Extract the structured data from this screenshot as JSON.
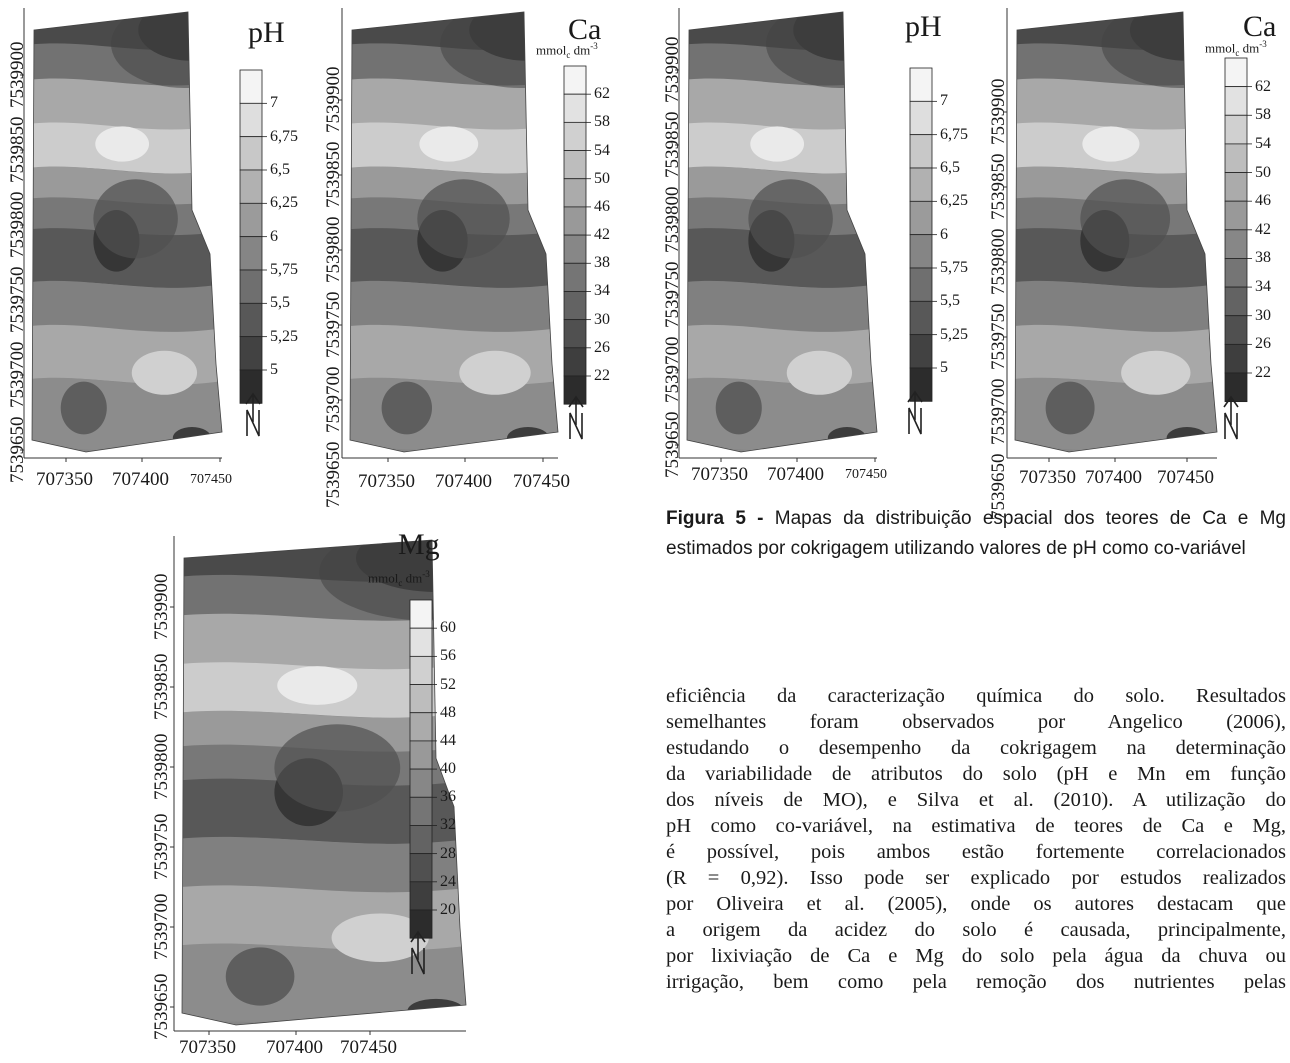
{
  "panels": [
    {
      "id": "p1",
      "variable": "pH",
      "unit": "",
      "y_ticks": [
        "7539650",
        "7539700",
        "7539750",
        "7539800",
        "7539850",
        "7539900"
      ],
      "x_ticks": [
        "707350",
        "707400",
        "707450"
      ],
      "legend": [
        "7",
        "6,75",
        "6,5",
        "6,25",
        "6",
        "5,75",
        "5,5",
        "5,25",
        "5"
      ]
    },
    {
      "id": "p2",
      "variable": "Ca",
      "unit": "mmolc dm-3",
      "y_ticks": [
        "7539650",
        "7539700",
        "7539750",
        "7539800",
        "7539850",
        "7539900"
      ],
      "x_ticks": [
        "707350",
        "707400",
        "707450"
      ],
      "legend": [
        "62",
        "58",
        "54",
        "50",
        "46",
        "42",
        "38",
        "34",
        "30",
        "26",
        "22"
      ]
    },
    {
      "id": "p3",
      "variable": "pH",
      "unit": "",
      "y_ticks": [
        "7539650",
        "7539700",
        "7539750",
        "7539800",
        "7539850",
        "7539900"
      ],
      "x_ticks": [
        "707350",
        "707400",
        "707450"
      ],
      "legend": [
        "7",
        "6,75",
        "6,5",
        "6,25",
        "6",
        "5,75",
        "5,5",
        "5,25",
        "5"
      ]
    },
    {
      "id": "p4",
      "variable": "Ca",
      "unit": "mmolc dm-3",
      "y_ticks": [
        "7539650",
        "7539700",
        "7539750",
        "7539800",
        "7539850",
        "7539900"
      ],
      "x_ticks": [
        "707350",
        "707400",
        "707450"
      ],
      "legend": [
        "62",
        "58",
        "54",
        "50",
        "46",
        "42",
        "38",
        "34",
        "30",
        "26",
        "22"
      ]
    },
    {
      "id": "p5",
      "variable": "Mg",
      "unit": "mmolc dm-3",
      "y_ticks": [
        "7539650",
        "7539700",
        "7539750",
        "7539800",
        "7539850",
        "7539900"
      ],
      "x_ticks": [
        "707350",
        "707400",
        "707450"
      ],
      "legend": [
        "60",
        "56",
        "52",
        "48",
        "44",
        "40",
        "36",
        "32",
        "28",
        "24",
        "20"
      ]
    }
  ],
  "caption": {
    "label": "Figura 5 -",
    "text": " Mapas da distribuição espacial dos teores de Ca e Mg estimados por cokrigagem utilizando valores de pH como co-variável"
  },
  "body_lines": [
    "eficiência da caracterização química do solo. Resultados",
    "semelhantes foram observados por Angelico (2006),",
    "estudando o desempenho da cokrigagem na determinação",
    "da variabilidade de atributos do solo (pH e Mn em função",
    "dos níveis de MO), e Silva et al. (2010). A utilização do",
    "pH como co-variável, na estimativa de teores de Ca e Mg,",
    "é possível, pois ambos estão fortemente correlacionados",
    "(R = 0,92). Isso pode ser explicado por estudos realizados",
    "por Oliveira et al. (2005), onde os autores destacam que",
    "a origem da acidez do solo é causada, principalmente,",
    "por lixiviação de Ca e Mg do solo pela água da chuva ou",
    "irrigação, bem como pela remoção dos nutrientes pelas"
  ],
  "colors": {
    "map_dark": "#2e2e2e",
    "map_light": "#f4f4f4",
    "legend_border": "#222222"
  }
}
